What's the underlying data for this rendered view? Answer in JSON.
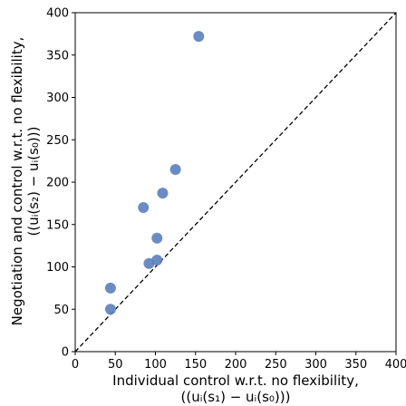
{
  "chart_data": {
    "type": "scatter",
    "title": "",
    "xlabel": "Individual control w.r.t. no flexibility,",
    "xlabel_line2": "((uᵢ(s₁) − uᵢ(s₀)))",
    "ylabel": "Negotiation and control w.r.t. no flexibility,",
    "ylabel_line2": "((uᵢ(s₂) − uᵢ(s₀)))",
    "xlim": [
      0,
      400
    ],
    "ylim": [
      0,
      400
    ],
    "x_ticks": [
      0,
      50,
      100,
      150,
      200,
      250,
      300,
      350,
      400
    ],
    "y_ticks": [
      0,
      50,
      100,
      150,
      200,
      250,
      300,
      350,
      400
    ],
    "x_tick_labels": [
      "0",
      "50",
      "100",
      "150",
      "200",
      "250",
      "300",
      "350",
      "400"
    ],
    "y_tick_labels": [
      "0",
      "50",
      "100",
      "150",
      "200",
      "250",
      "300",
      "350",
      "400"
    ],
    "grid": false,
    "reference_line": {
      "style": "dashed",
      "from": [
        0,
        0
      ],
      "to": [
        400,
        400
      ],
      "color": "#000000"
    },
    "marker_color": "#5b7fbd",
    "series": [
      {
        "points": [
          {
            "x": 44,
            "y": 50
          },
          {
            "x": 44,
            "y": 75
          },
          {
            "x": 92,
            "y": 104
          },
          {
            "x": 102,
            "y": 108
          },
          {
            "x": 102,
            "y": 134
          },
          {
            "x": 85,
            "y": 170
          },
          {
            "x": 109,
            "y": 187
          },
          {
            "x": 125,
            "y": 215
          },
          {
            "x": 154,
            "y": 372
          }
        ]
      }
    ]
  }
}
